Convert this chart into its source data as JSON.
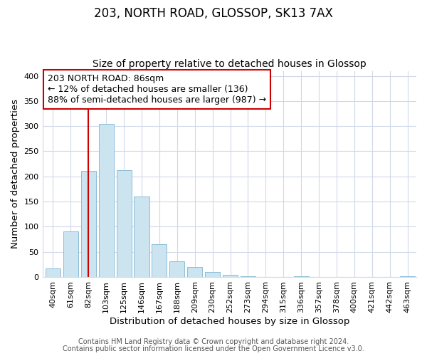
{
  "title": "203, NORTH ROAD, GLOSSOP, SK13 7AX",
  "subtitle": "Size of property relative to detached houses in Glossop",
  "xlabel": "Distribution of detached houses by size in Glossop",
  "ylabel": "Number of detached properties",
  "bin_labels": [
    "40sqm",
    "61sqm",
    "82sqm",
    "103sqm",
    "125sqm",
    "146sqm",
    "167sqm",
    "188sqm",
    "209sqm",
    "230sqm",
    "252sqm",
    "273sqm",
    "294sqm",
    "315sqm",
    "336sqm",
    "357sqm",
    "378sqm",
    "400sqm",
    "421sqm",
    "442sqm",
    "463sqm"
  ],
  "bar_values": [
    17,
    90,
    211,
    305,
    213,
    160,
    65,
    31,
    20,
    10,
    4,
    1,
    0,
    0,
    1,
    0,
    0,
    0,
    0,
    0,
    1
  ],
  "bar_color": "#cce4f0",
  "bar_edge_color": "#8bbdd6",
  "ylim": [
    0,
    410
  ],
  "yticks": [
    0,
    50,
    100,
    150,
    200,
    250,
    300,
    350,
    400
  ],
  "vline_x": 2,
  "vline_color": "#cc0000",
  "annotation_text": "203 NORTH ROAD: 86sqm\n← 12% of detached houses are smaller (136)\n88% of semi-detached houses are larger (987) →",
  "annotation_box_color": "#ffffff",
  "annotation_box_edge": "#cc0000",
  "footer_line1": "Contains HM Land Registry data © Crown copyright and database right 2024.",
  "footer_line2": "Contains public sector information licensed under the Open Government Licence v3.0.",
  "bg_color": "#ffffff",
  "grid_color": "#d0d8e8",
  "title_fontsize": 12,
  "subtitle_fontsize": 10,
  "axis_label_fontsize": 9.5,
  "tick_fontsize": 8,
  "footer_fontsize": 7,
  "annotation_fontsize": 9
}
